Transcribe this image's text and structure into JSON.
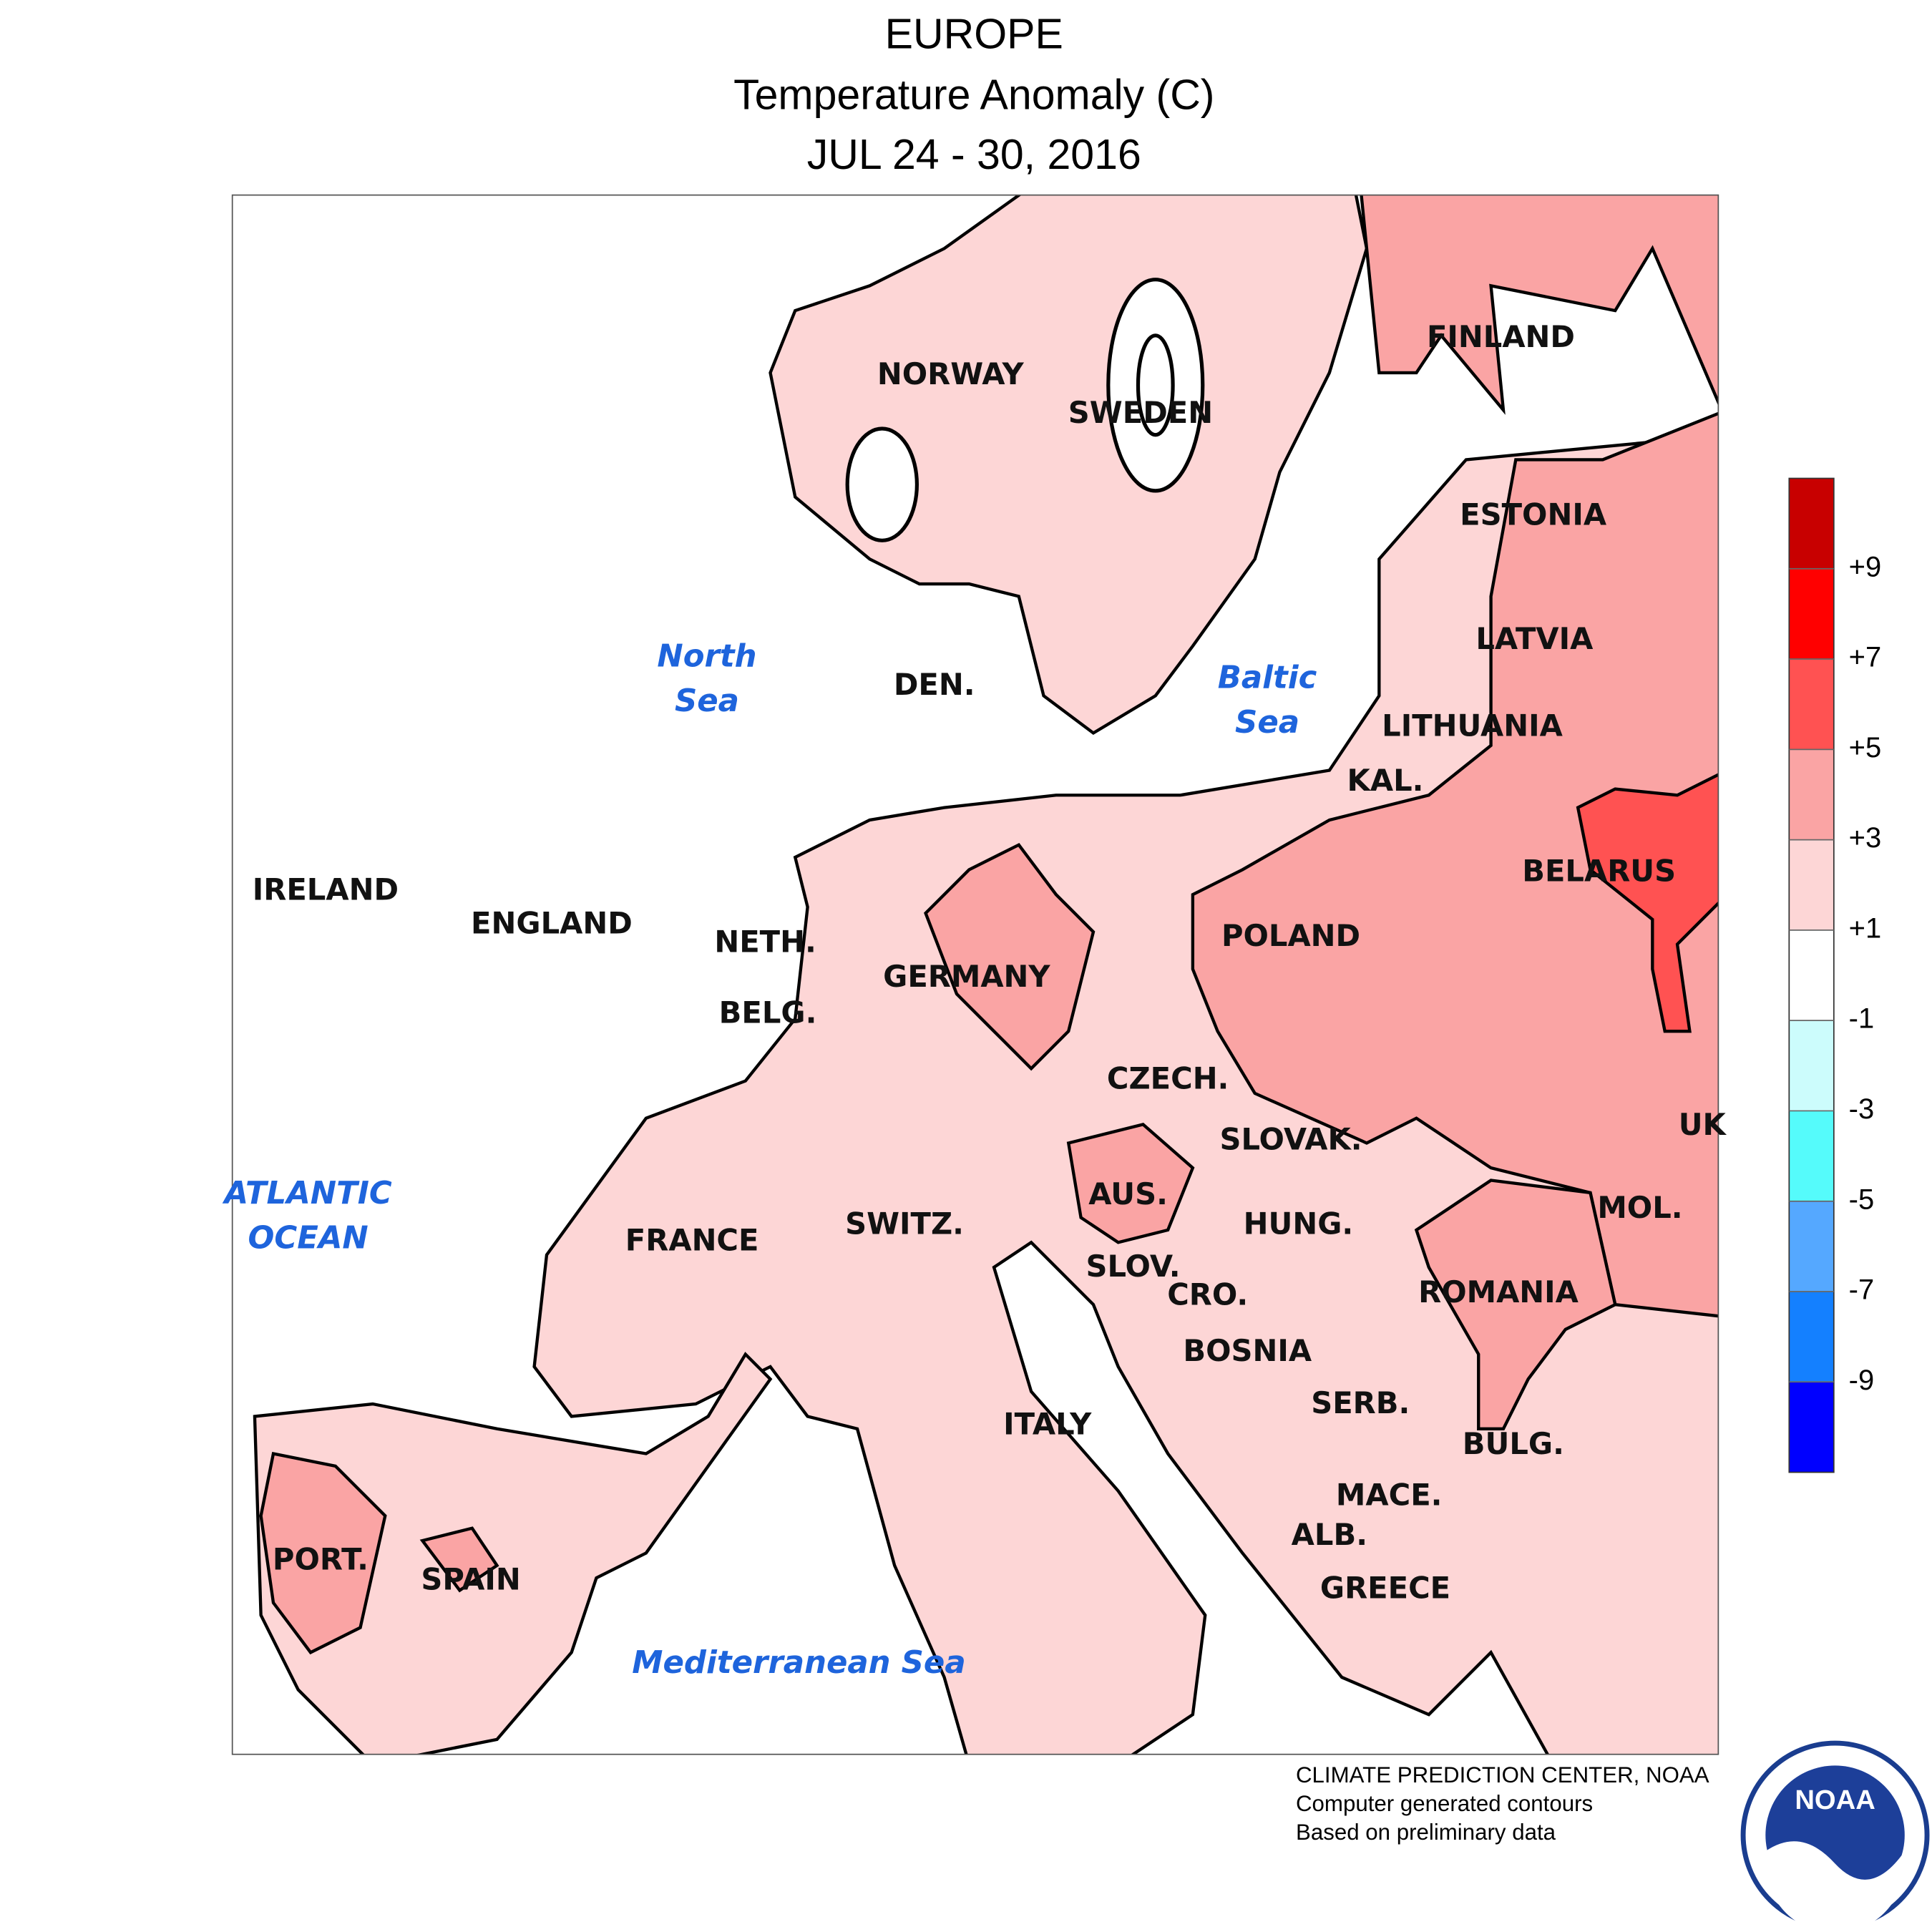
{
  "header": {
    "title": "EUROPE",
    "subtitle": "Temperature Anomaly (C)",
    "period": "JUL 24 - 30, 2016"
  },
  "countries": [
    "NORWAY",
    "SWEDEN",
    "FINLAND",
    "ESTONIA",
    "LATVIA",
    "LITHUANIA",
    "KAL.",
    "DEN.",
    "IRELAND",
    "ENGLAND",
    "NETH.",
    "BELG.",
    "GERMANY",
    "POLAND",
    "BELARUS",
    "CZECH.",
    "SLOVAK.",
    "UK",
    "AUS.",
    "HUNG.",
    "MOL.",
    "SWITZ.",
    "FRANCE",
    "SLOV.",
    "CRO.",
    "ROMANIA",
    "BOSNIA",
    "SERB.",
    "BULG.",
    "ITALY",
    "MACE.",
    "ALB.",
    "GREECE",
    "PORT.",
    "SPAIN"
  ],
  "seas": [
    [
      "North",
      "Sea"
    ],
    [
      "Baltic",
      "Sea"
    ],
    [
      "ATLANTIC",
      "OCEAN"
    ],
    [
      "Mediterranean Sea"
    ]
  ],
  "legend": {
    "colors": [
      "#c80000",
      "#ff0000",
      "#ff5252",
      "#faa4a4",
      "#fdd6d6",
      "#ffffff",
      "#ccfcfc",
      "#55fbfb",
      "#55a8ff",
      "#1480ff",
      "#0000ff"
    ],
    "ticks": [
      {
        "value": 9,
        "label": "+9"
      },
      {
        "value": 7,
        "label": "+7"
      },
      {
        "value": 5,
        "label": "+5"
      },
      {
        "value": 3,
        "label": "+3"
      },
      {
        "value": 1,
        "label": "+1"
      },
      -1,
      -3,
      -5,
      -7,
      -9
    ]
  },
  "credits": [
    "CLIMATE PREDICTION CENTER, NOAA",
    "Computer generated contours",
    "Based on preliminary data"
  ],
  "logo_text": "NOAA"
}
